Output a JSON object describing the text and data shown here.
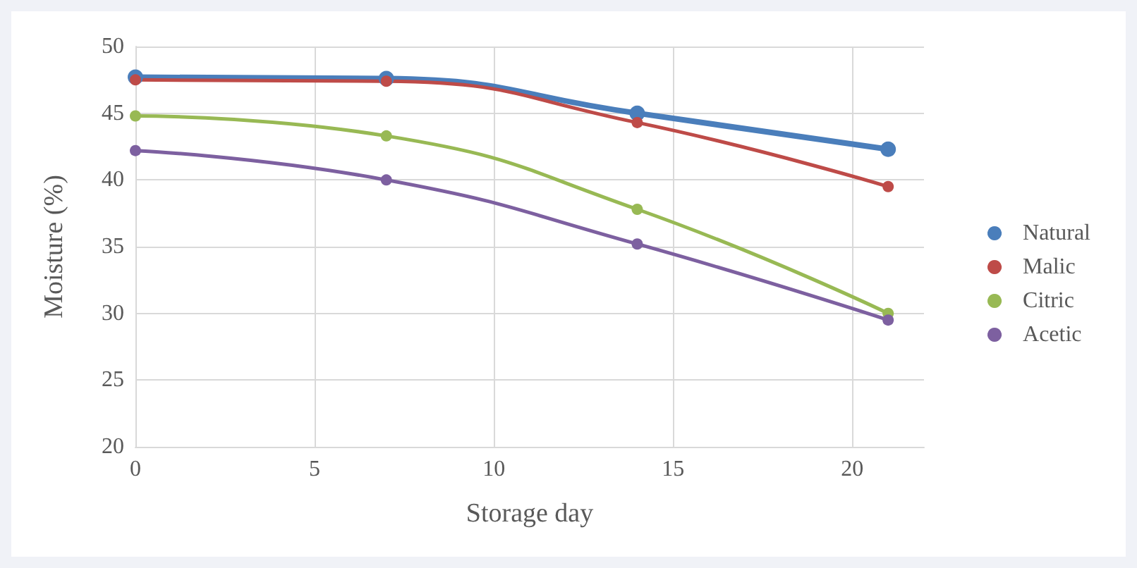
{
  "chart_data": {
    "type": "line",
    "xlabel": "Storage day",
    "ylabel": "Moisture (%)",
    "x": [
      0,
      7,
      14,
      21
    ],
    "series": [
      {
        "name": "Natural",
        "color": "#4a7ebb",
        "values": [
          47.7,
          47.6,
          45.0,
          42.3
        ]
      },
      {
        "name": "Malic",
        "color": "#be4b48",
        "values": [
          47.5,
          47.4,
          44.3,
          39.5
        ]
      },
      {
        "name": "Citric",
        "color": "#98b954",
        "values": [
          44.8,
          43.3,
          37.8,
          30.0
        ]
      },
      {
        "name": "Acetic",
        "color": "#7d60a0",
        "values": [
          42.2,
          40.0,
          35.2,
          29.5
        ]
      }
    ],
    "xlim": [
      0,
      22
    ],
    "xticks": [
      0,
      5,
      10,
      15,
      20
    ],
    "ylim": [
      20,
      50
    ],
    "yticks": [
      20,
      25,
      30,
      35,
      40,
      45,
      50
    ],
    "grid": true,
    "legend": "right",
    "marker": "circle",
    "line_style": "solid"
  }
}
